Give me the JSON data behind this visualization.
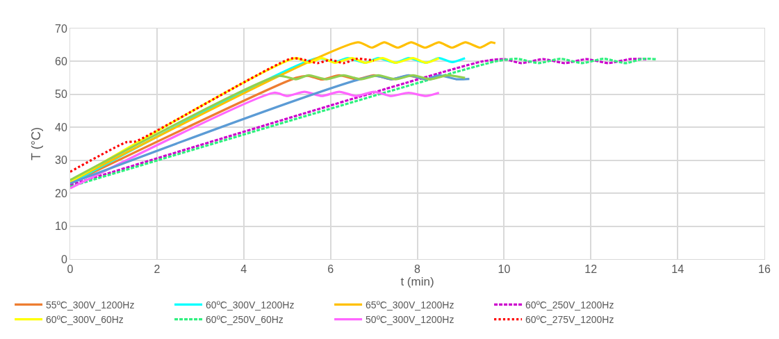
{
  "chart_data": {
    "type": "line",
    "xlabel": "t (min)",
    "ylabel": "T (°C)",
    "xlim": [
      0,
      16
    ],
    "xticks": [
      0,
      2,
      4,
      6,
      8,
      10,
      12,
      14,
      16
    ],
    "ylim": [
      0,
      70
    ],
    "yticks": [
      0,
      10,
      20,
      30,
      40,
      50,
      60,
      70
    ],
    "grid": true,
    "legend": "bottom",
    "marker": "none",
    "line_style": "solid",
    "series": [
      {
        "name": "55ºC_300V_1200Hz",
        "color": "#ed7d31",
        "x": [
          0,
          5.2,
          5.5,
          5.8,
          6.2,
          6.6,
          7.0,
          7.4,
          7.8,
          8.2,
          8.5
        ],
        "values": [
          23,
          55,
          55.6,
          54.5,
          55.8,
          54.6,
          55.8,
          54.6,
          55.7,
          54.5,
          55.3
        ]
      },
      {
        "name": "60ºC_300V_1200Hz",
        "color": "#00ffff",
        "x": [
          0,
          5.7,
          6.1,
          6.4,
          6.8,
          7.1,
          7.5,
          7.8,
          8.2,
          8.5,
          8.8,
          9.1
        ],
        "values": [
          23,
          61,
          59.8,
          61,
          59.6,
          61,
          59.6,
          61,
          59.6,
          61,
          59.8,
          61
        ]
      },
      {
        "name": "65ºC_300V_1200Hz",
        "color": "#ffc000",
        "x": [
          0,
          6.63,
          6.95,
          7.24,
          7.55,
          7.86,
          8.18,
          8.5,
          8.8,
          9.11,
          9.45,
          9.7,
          9.8
        ],
        "values": [
          23.5,
          65.8,
          64.2,
          65.8,
          64.2,
          65.8,
          64.2,
          65.8,
          64.2,
          65.8,
          64.2,
          65.8,
          65.5
        ]
      },
      {
        "name": "60ºC_250V_1200Hz",
        "color": "#cc00cc",
        "line_style": "dashed",
        "x": [
          0,
          9.5,
          10.0,
          10.4,
          10.9,
          11.4,
          11.9,
          12.4,
          12.9,
          13.3
        ],
        "values": [
          22.5,
          60,
          60.7,
          59.5,
          60.7,
          59.5,
          60.7,
          59.5,
          60.7,
          60.7
        ]
      },
      {
        "name": "60ºC_300V_60Hz",
        "color": "#ffff00",
        "x": [
          0,
          5.2,
          5.5,
          5.8,
          6.1,
          6.5,
          6.8,
          7.2,
          7.5,
          7.9,
          8.2,
          8.5
        ],
        "values": [
          23.5,
          61,
          59.6,
          61,
          59.6,
          61,
          59.6,
          61,
          59.6,
          61,
          59.6,
          61
        ]
      },
      {
        "name": "60ºC_250V_60Hz",
        "color": "#2ef07e",
        "line_style": "dashed",
        "x": [
          0,
          9.8,
          10.3,
          10.8,
          11.3,
          11.8,
          12.3,
          12.8,
          13.2,
          13.5
        ],
        "values": [
          22,
          60,
          60.8,
          59.5,
          60.8,
          59.5,
          60.8,
          59.5,
          60.8,
          60.7
        ]
      },
      {
        "name": "50ºC_300V_1200Hz",
        "color": "#ff66ff",
        "x": [
          0,
          4.7,
          5.0,
          5.4,
          5.8,
          6.2,
          6.6,
          7.0,
          7.4,
          7.8,
          8.2,
          8.5
        ],
        "values": [
          21.5,
          50.5,
          49.5,
          50.8,
          49.5,
          50.8,
          49.5,
          50.8,
          49.5,
          50.5,
          49.5,
          50.5
        ]
      },
      {
        "name": "60ºC_275V_1200Hz",
        "color": "#ff0000",
        "line_style": "dotted",
        "x": [
          0,
          1.3,
          1.5,
          5.1,
          5.4,
          5.7,
          6.0,
          6.3,
          6.6,
          7.0
        ],
        "values": [
          26.5,
          35.5,
          35.7,
          60.9,
          60.5,
          59.5,
          60.5,
          59.5,
          60.8,
          60.3
        ]
      },
      {
        "color": "#5b9bd5",
        "x": [
          0,
          7.0,
          7.4,
          7.8,
          8.2,
          8.5,
          8.9,
          9.2
        ],
        "values": [
          23,
          55.6,
          54.6,
          55.8,
          54.6,
          55.8,
          54.6,
          54.7
        ]
      },
      {
        "color": "#92d050",
        "x": [
          0,
          4.8,
          5.2,
          5.5,
          5.9,
          6.3,
          6.7,
          7.1,
          7.5,
          7.9,
          8.3,
          8.7,
          9.1
        ],
        "values": [
          24,
          55.6,
          54.6,
          55.8,
          54.6,
          55.8,
          54.6,
          55.8,
          54.6,
          55.8,
          54.6,
          55.8,
          55
        ]
      }
    ]
  }
}
